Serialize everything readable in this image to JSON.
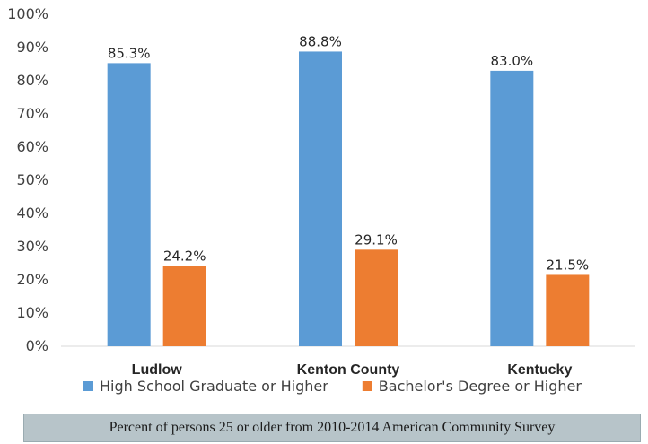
{
  "chart_data": {
    "type": "bar",
    "categories": [
      "Ludlow",
      "Kenton County",
      "Kentucky"
    ],
    "series": [
      {
        "name": "High School Graduate or Higher",
        "values": [
          85.3,
          88.8,
          83.0
        ],
        "labels": [
          "85.3%",
          "88.8%",
          "83.0%"
        ],
        "color": "#5b9bd5"
      },
      {
        "name": "Bachelor's Degree or Higher",
        "values": [
          24.2,
          29.1,
          21.5
        ],
        "labels": [
          "24.2%",
          "29.1%",
          "21.5%"
        ],
        "color": "#ed7d31"
      }
    ],
    "ylim": [
      0,
      100
    ],
    "yticks": [
      "0%",
      "10%",
      "20%",
      "30%",
      "40%",
      "50%",
      "60%",
      "70%",
      "80%",
      "90%",
      "100%"
    ],
    "grid": false,
    "legend": "bottom",
    "axis_color": "#d9d9d9"
  },
  "caption": "Percent of persons 25 or older from 2010-2014 American Community Survey",
  "caption_bg": "#b7c4c9"
}
